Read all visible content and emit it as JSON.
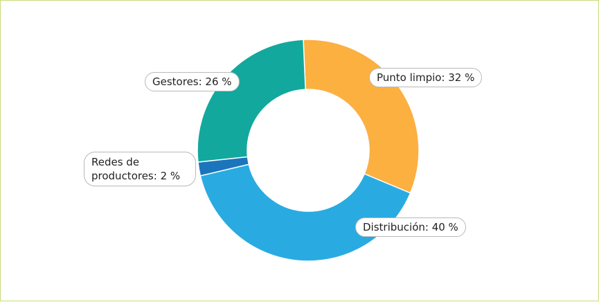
{
  "chart_data": {
    "type": "donut",
    "categories": [
      "Punto limpio",
      "Distribución",
      "Redes de productores",
      "Gestores"
    ],
    "values": [
      32,
      40,
      2,
      26
    ],
    "value_labels": [
      "Punto limpio: 32 %",
      "Distribución: 40 %",
      "Redes de productores: 2 %",
      "Gestores: 26 %"
    ],
    "colors": [
      "#fbb040",
      "#29abe2",
      "#1b75bc",
      "#12a89d"
    ]
  }
}
